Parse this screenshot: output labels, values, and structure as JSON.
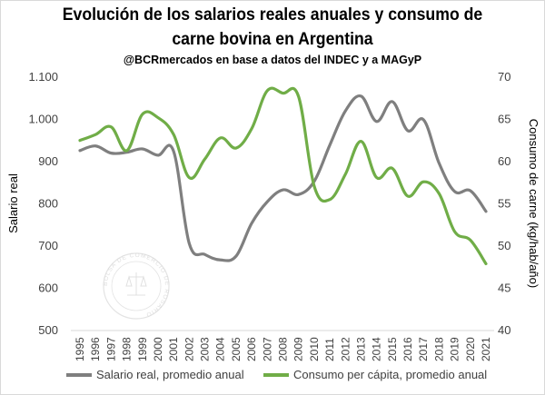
{
  "chart_data": {
    "type": "line",
    "title": "Evolución de los salarios reales anuales y consumo de carne bovina en Argentina",
    "title_lines": [
      "Evolución de los salarios reales anuales y consumo de",
      "carne bovina en Argentina"
    ],
    "subtitle": "@BCRmercados en base a datos del INDEC y a MAGyP",
    "xlabel": "",
    "ylabel": "Salario real",
    "y2label": "Consumo de carne (kg/hab/año)",
    "x": [
      "1995",
      "1996",
      "1997",
      "1998",
      "1999",
      "2000",
      "2001",
      "2002",
      "2003",
      "2004",
      "2005",
      "2006",
      "2007",
      "2008",
      "2009",
      "2010",
      "2011",
      "2012",
      "2013",
      "2014",
      "2015",
      "2016",
      "2017",
      "2018",
      "2019",
      "2020",
      "2021"
    ],
    "ylim": [
      500,
      1100
    ],
    "y2lim": [
      40,
      70
    ],
    "yticks": [
      "500",
      "600",
      "700",
      "800",
      "900",
      "1.000",
      "1.100"
    ],
    "yticks_values": [
      500,
      600,
      700,
      800,
      900,
      1000,
      1100
    ],
    "y2ticks": [
      "40",
      "45",
      "50",
      "55",
      "60",
      "65",
      "70"
    ],
    "y2ticks_values": [
      40,
      45,
      50,
      55,
      60,
      65,
      70
    ],
    "grid": false,
    "legend_placement": "bottom",
    "series": [
      {
        "name": "Salario real, promedio anual",
        "axis": "left",
        "color": "#7f7f7f",
        "values": [
          924,
          935,
          918,
          920,
          928,
          913,
          922,
          704,
          678,
          665,
          674,
          752,
          803,
          831,
          820,
          851,
          937,
          1018,
          1053,
          993,
          1040,
          971,
          997,
          894,
          827,
          829,
          780
        ]
      },
      {
        "name": "Consumo per cápita, promedio anual",
        "axis": "right",
        "color": "#70ad47",
        "values": [
          62.4,
          63.1,
          64.0,
          61.2,
          65.5,
          65.1,
          63.1,
          58.0,
          60.2,
          62.7,
          61.5,
          63.8,
          68.3,
          68.0,
          67.6,
          57.0,
          55.4,
          58.4,
          62.3,
          58.0,
          59.1,
          55.8,
          57.5,
          56.1,
          51.6,
          50.6,
          47.8
        ]
      }
    ]
  },
  "watermark": {
    "text": "BOLSA DE COMERCIO DE ROSARIO"
  }
}
